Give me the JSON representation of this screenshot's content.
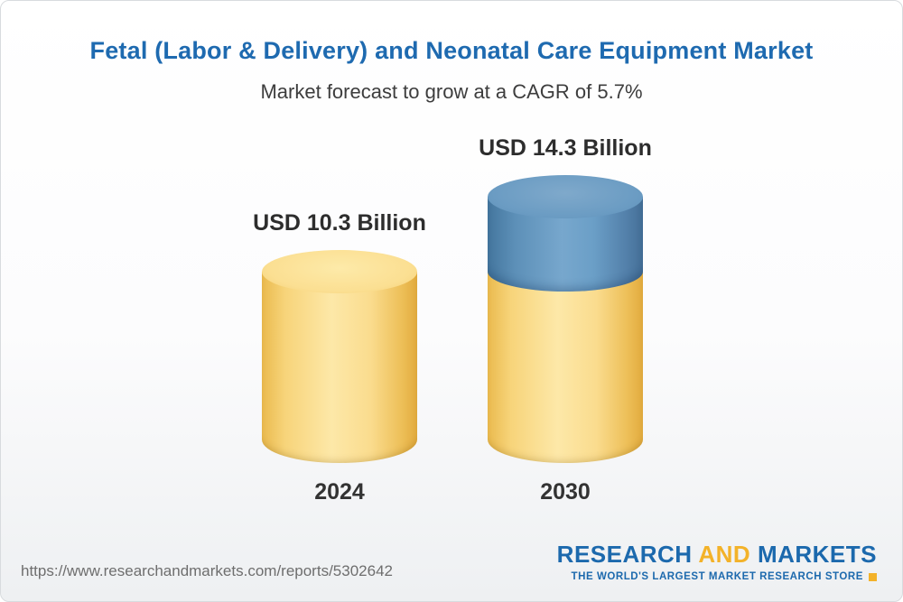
{
  "header": {
    "title": "Fetal (Labor & Delivery) and Neonatal Care Equipment Market",
    "subtitle": "Market forecast to grow at a CAGR of 5.7%"
  },
  "chart_data": {
    "type": "bar",
    "variant": "cylinder-3d",
    "categories": [
      "2024",
      "2030"
    ],
    "values": [
      10.3,
      14.3
    ],
    "value_labels": [
      "USD 10.3 Billion",
      "USD 14.3 Billion"
    ],
    "unit": "USD Billion",
    "cagr_percent": 5.7,
    "title": "Fetal (Labor & Delivery) and Neonatal Care Equipment Market",
    "subtitle": "Market forecast to grow at a CAGR of 5.7%",
    "legend": "none",
    "grid": "off",
    "colors": {
      "base_bar": "#F9D877",
      "growth_segment": "#6699C2",
      "title_text": "#1E6AB0",
      "label_text": "#2D2D2D"
    }
  },
  "footer": {
    "url": "https://www.researchandmarkets.com/reports/5302642",
    "logo": {
      "research": "RESEARCH",
      "and": "AND",
      "markets": "MARKETS",
      "tagline": "THE WORLD'S LARGEST MARKET RESEARCH STORE"
    }
  }
}
